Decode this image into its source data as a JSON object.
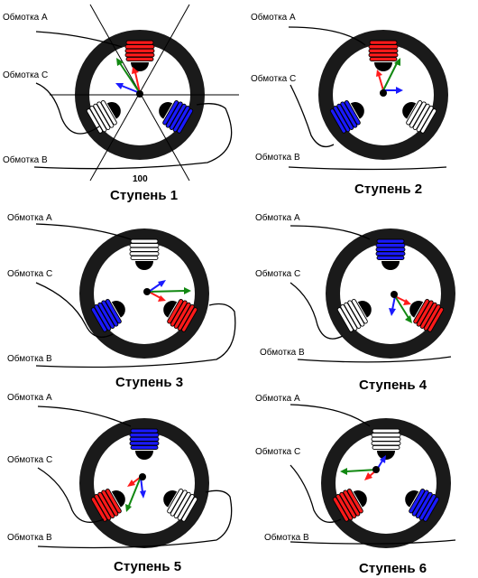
{
  "panels": [
    {
      "step_label": "Ступень 1",
      "labels": {
        "a": "Обмотка A",
        "c": "Обмотка C",
        "b": "Обмотка B"
      },
      "tick_label": "100",
      "coils": {
        "top": "red",
        "left": "white",
        "right": "blue"
      }
    },
    {
      "step_label": "Ступень 2",
      "labels": {
        "a": "Обмотка A",
        "c": "Обмотка C",
        "b": "Обмотка B"
      },
      "coils": {
        "top": "red",
        "left": "blue",
        "right": "white"
      }
    },
    {
      "step_label": "Ступень 3",
      "labels": {
        "a": "Обмотка A",
        "c": "Обмотка C",
        "b": "Обмотка B"
      },
      "coils": {
        "top": "white",
        "left": "blue",
        "right": "red"
      }
    },
    {
      "step_label": "Ступень 4",
      "labels": {
        "a": "Обмотка A",
        "c": "Обмотка C",
        "b": "Обмотка B"
      },
      "coils": {
        "top": "blue",
        "left": "white",
        "right": "red"
      }
    },
    {
      "step_label": "Ступень 5",
      "labels": {
        "a": "Обмотка A",
        "c": "Обмотка C",
        "b": "Обмотка B"
      },
      "coils": {
        "top": "blue",
        "left": "red",
        "right": "white"
      }
    },
    {
      "step_label": "Ступень 6",
      "labels": {
        "a": "Обмотка A",
        "c": "Обмотка C",
        "b": "Обмотка B"
      },
      "coils": {
        "top": "white",
        "left": "red",
        "right": "blue"
      }
    }
  ],
  "colors": {
    "red": "#ff1a1a",
    "blue": "#1a1aff",
    "green": "#118811",
    "white": "#ffffff",
    "ring": "#1a1a1a"
  }
}
